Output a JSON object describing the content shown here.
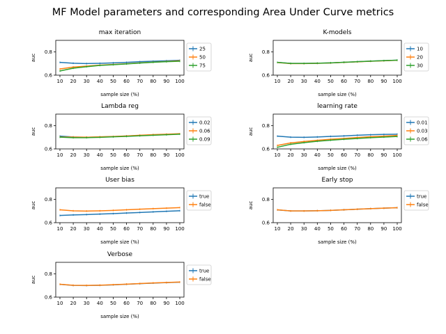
{
  "figure": {
    "title": "MF Model parameters and corresponding Area Under Curve metrics"
  },
  "colors": {
    "c0": "#1f77b4",
    "c1": "#ff7f0e",
    "c2": "#2ca02c"
  },
  "chart_data": [
    {
      "type": "line",
      "title": "max iteration",
      "xlabel": "sample size (%)",
      "ylabel": "auc",
      "x": [
        10,
        20,
        30,
        40,
        50,
        60,
        70,
        80,
        90,
        100
      ],
      "ylim": [
        0.6,
        0.9
      ],
      "yticks": [
        0.6,
        0.8
      ],
      "legend": "right",
      "series": [
        {
          "name": "25",
          "color": "#1f77b4",
          "values": [
            0.71,
            0.703,
            0.7,
            0.702,
            0.706,
            0.71,
            0.716,
            0.72,
            0.724,
            0.728
          ]
        },
        {
          "name": "50",
          "color": "#ff7f0e",
          "values": [
            0.653,
            0.67,
            0.678,
            0.686,
            0.692,
            0.698,
            0.706,
            0.712,
            0.718,
            0.724
          ]
        },
        {
          "name": "75",
          "color": "#2ca02c",
          "values": [
            0.636,
            0.66,
            0.673,
            0.684,
            0.69,
            0.697,
            0.704,
            0.711,
            0.716,
            0.72
          ]
        }
      ]
    },
    {
      "type": "line",
      "title": "K-models",
      "xlabel": "sample size (%)",
      "ylabel": "auc",
      "x": [
        10,
        20,
        30,
        40,
        50,
        60,
        70,
        80,
        90,
        100
      ],
      "ylim": [
        0.6,
        0.9
      ],
      "yticks": [
        0.6,
        0.8
      ],
      "legend": "right",
      "series": [
        {
          "name": "10",
          "color": "#1f77b4",
          "values": [
            0.71,
            0.701,
            0.701,
            0.703,
            0.706,
            0.711,
            0.716,
            0.721,
            0.725,
            0.729
          ]
        },
        {
          "name": "20",
          "color": "#ff7f0e",
          "values": [
            0.709,
            0.7,
            0.7,
            0.702,
            0.705,
            0.71,
            0.715,
            0.72,
            0.724,
            0.728
          ]
        },
        {
          "name": "30",
          "color": "#2ca02c",
          "values": [
            0.71,
            0.701,
            0.701,
            0.703,
            0.706,
            0.711,
            0.716,
            0.721,
            0.725,
            0.729
          ]
        }
      ]
    },
    {
      "type": "line",
      "title": "Lambda reg",
      "xlabel": "sample size (%)",
      "ylabel": "auc",
      "x": [
        10,
        20,
        30,
        40,
        50,
        60,
        70,
        80,
        90,
        100
      ],
      "ylim": [
        0.6,
        0.9
      ],
      "yticks": [
        0.6,
        0.8
      ],
      "legend": "right",
      "series": [
        {
          "name": "0.02",
          "color": "#1f77b4",
          "values": [
            0.71,
            0.703,
            0.7,
            0.703,
            0.706,
            0.711,
            0.716,
            0.721,
            0.725,
            0.729
          ]
        },
        {
          "name": "0.06",
          "color": "#ff7f0e",
          "values": [
            0.703,
            0.702,
            0.701,
            0.704,
            0.707,
            0.712,
            0.718,
            0.723,
            0.727,
            0.731
          ]
        },
        {
          "name": "0.09",
          "color": "#2ca02c",
          "values": [
            0.701,
            0.697,
            0.697,
            0.7,
            0.704,
            0.708,
            0.713,
            0.718,
            0.722,
            0.727
          ]
        }
      ]
    },
    {
      "type": "line",
      "title": "learning rate",
      "xlabel": "sample size (%)",
      "ylabel": "auc",
      "x": [
        10,
        20,
        30,
        40,
        50,
        60,
        70,
        80,
        90,
        100
      ],
      "ylim": [
        0.6,
        0.9
      ],
      "yticks": [
        0.6,
        0.8
      ],
      "legend": "right",
      "series": [
        {
          "name": "0.01",
          "color": "#1f77b4",
          "values": [
            0.71,
            0.701,
            0.7,
            0.703,
            0.708,
            0.712,
            0.718,
            0.722,
            0.725,
            0.727
          ]
        },
        {
          "name": "0.03",
          "color": "#ff7f0e",
          "values": [
            0.63,
            0.652,
            0.664,
            0.674,
            0.683,
            0.69,
            0.698,
            0.705,
            0.71,
            0.716
          ]
        },
        {
          "name": "0.06",
          "color": "#2ca02c",
          "values": [
            0.614,
            0.64,
            0.654,
            0.666,
            0.675,
            0.683,
            0.69,
            0.697,
            0.702,
            0.707
          ]
        }
      ]
    },
    {
      "type": "line",
      "title": "User bias",
      "xlabel": "sample size (%)",
      "ylabel": "auc",
      "x": [
        10,
        20,
        30,
        40,
        50,
        60,
        70,
        80,
        90,
        100
      ],
      "ylim": [
        0.6,
        0.9
      ],
      "yticks": [
        0.6,
        0.8
      ],
      "legend": "right",
      "series": [
        {
          "name": "true",
          "color": "#1f77b4",
          "values": [
            0.662,
            0.667,
            0.67,
            0.674,
            0.678,
            0.683,
            0.688,
            0.693,
            0.698,
            0.703
          ]
        },
        {
          "name": "false",
          "color": "#ff7f0e",
          "values": [
            0.711,
            0.702,
            0.7,
            0.702,
            0.706,
            0.711,
            0.716,
            0.721,
            0.725,
            0.73
          ]
        }
      ]
    },
    {
      "type": "line",
      "title": "Early stop",
      "xlabel": "sample size (%)",
      "ylabel": "auc",
      "x": [
        10,
        20,
        30,
        40,
        50,
        60,
        70,
        80,
        90,
        100
      ],
      "ylim": [
        0.6,
        0.9
      ],
      "yticks": [
        0.6,
        0.8
      ],
      "legend": "right",
      "series": [
        {
          "name": "true",
          "color": "#1f77b4",
          "values": [
            0.71,
            0.701,
            0.701,
            0.703,
            0.706,
            0.711,
            0.716,
            0.721,
            0.725,
            0.729
          ]
        },
        {
          "name": "false",
          "color": "#ff7f0e",
          "values": [
            0.711,
            0.701,
            0.701,
            0.703,
            0.706,
            0.711,
            0.716,
            0.721,
            0.725,
            0.729
          ]
        }
      ]
    },
    {
      "type": "line",
      "title": "Verbose",
      "xlabel": "sample size (%)",
      "ylabel": "auc",
      "x": [
        10,
        20,
        30,
        40,
        50,
        60,
        70,
        80,
        90,
        100
      ],
      "ylim": [
        0.6,
        0.9
      ],
      "yticks": [
        0.6,
        0.8
      ],
      "legend": "right",
      "series": [
        {
          "name": "true",
          "color": "#1f77b4",
          "values": [
            0.71,
            0.701,
            0.7,
            0.702,
            0.706,
            0.711,
            0.716,
            0.721,
            0.725,
            0.729
          ]
        },
        {
          "name": "false",
          "color": "#ff7f0e",
          "values": [
            0.711,
            0.702,
            0.701,
            0.703,
            0.707,
            0.712,
            0.717,
            0.722,
            0.726,
            0.73
          ]
        }
      ]
    }
  ]
}
